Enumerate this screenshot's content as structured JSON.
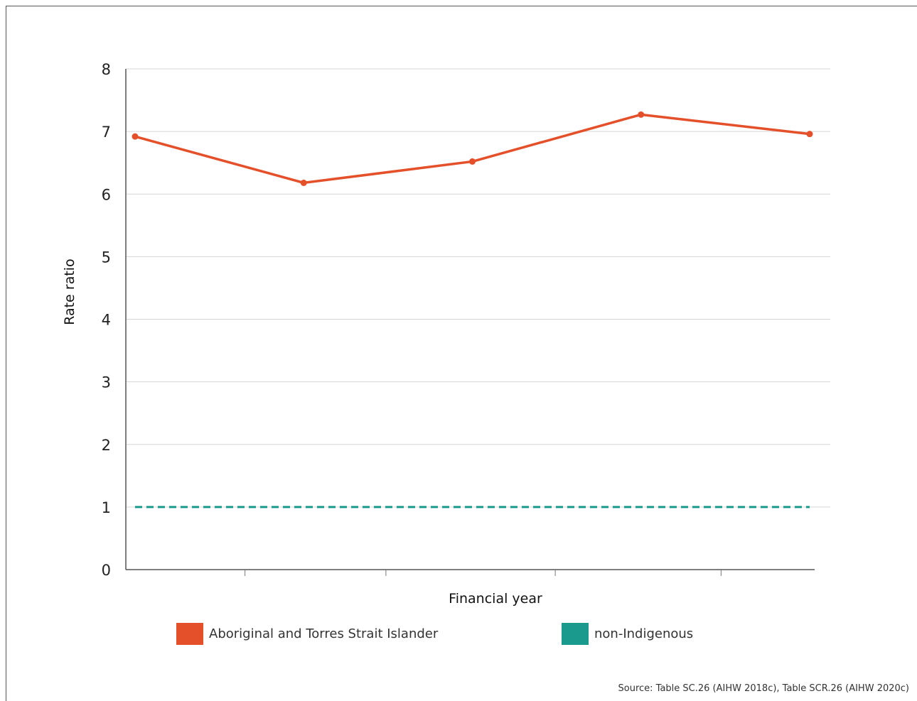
{
  "chart_data": {
    "type": "line",
    "xlabel": "Financial year",
    "ylabel": "Rate ratio",
    "ylim": [
      0,
      8
    ],
    "yticks": [
      0,
      1,
      2,
      3,
      4,
      5,
      6,
      7,
      8
    ],
    "grid": true,
    "legend_position": "bottom",
    "series": [
      {
        "name": "Aboriginal and Torres Strait Islander",
        "color": "#e4502a",
        "style": "solid",
        "values": [
          6.92,
          6.18,
          6.52,
          7.27,
          6.96
        ]
      },
      {
        "name": "non-Indigenous",
        "color": "#1a9a8c",
        "style": "dashed",
        "values": [
          1,
          1,
          1,
          1,
          1
        ]
      }
    ],
    "source": "Source: Table SC.26 (AIHW 2018c), Table SCR.26 (AIHW 2020c)"
  }
}
